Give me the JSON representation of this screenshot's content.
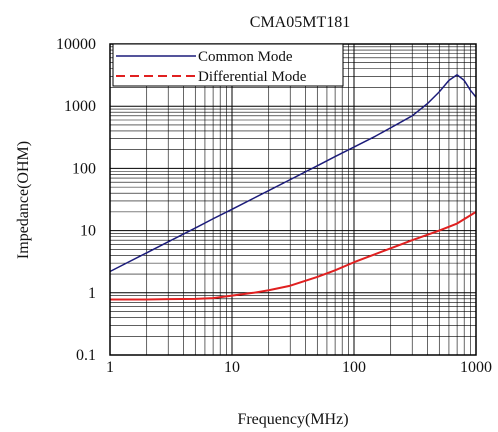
{
  "chart_data": {
    "type": "line",
    "title": "CMA05MT181",
    "xlabel": "Frequency(MHz)",
    "ylabel": "Impedance(OHM)",
    "x_scale": "log",
    "y_scale": "log",
    "xlim": [
      1,
      1000
    ],
    "ylim": [
      0.1,
      10000
    ],
    "grid": true,
    "legend_position": "top-left",
    "x_ticks": [
      "1",
      "10",
      "100",
      "1000"
    ],
    "y_ticks": [
      "0.1",
      "1",
      "10",
      "100",
      "1000",
      "10000"
    ],
    "series": [
      {
        "name": "Common Mode",
        "color": "#1c1c7a",
        "style": "solid",
        "points": [
          [
            1,
            2.2
          ],
          [
            2,
            4.4
          ],
          [
            3,
            6.6
          ],
          [
            5,
            11
          ],
          [
            7,
            15.5
          ],
          [
            10,
            22
          ],
          [
            20,
            44
          ],
          [
            30,
            66
          ],
          [
            50,
            110
          ],
          [
            70,
            155
          ],
          [
            100,
            220
          ],
          [
            150,
            330
          ],
          [
            200,
            450
          ],
          [
            300,
            700
          ],
          [
            400,
            1100
          ],
          [
            500,
            1700
          ],
          [
            600,
            2600
          ],
          [
            700,
            3200
          ],
          [
            800,
            2600
          ],
          [
            900,
            1800
          ],
          [
            1000,
            1400
          ]
        ]
      },
      {
        "name": "Differential Mode",
        "color": "#e02020",
        "style": "dashed",
        "points": [
          [
            1,
            0.78
          ],
          [
            2,
            0.78
          ],
          [
            3,
            0.79
          ],
          [
            5,
            0.8
          ],
          [
            7,
            0.82
          ],
          [
            10,
            0.9
          ],
          [
            15,
            1.0
          ],
          [
            20,
            1.1
          ],
          [
            30,
            1.3
          ],
          [
            50,
            1.8
          ],
          [
            70,
            2.3
          ],
          [
            100,
            3.1
          ],
          [
            150,
            4.2
          ],
          [
            200,
            5.2
          ],
          [
            300,
            7.0
          ],
          [
            500,
            10.0
          ],
          [
            700,
            13.0
          ],
          [
            1000,
            20.0
          ]
        ]
      }
    ]
  }
}
